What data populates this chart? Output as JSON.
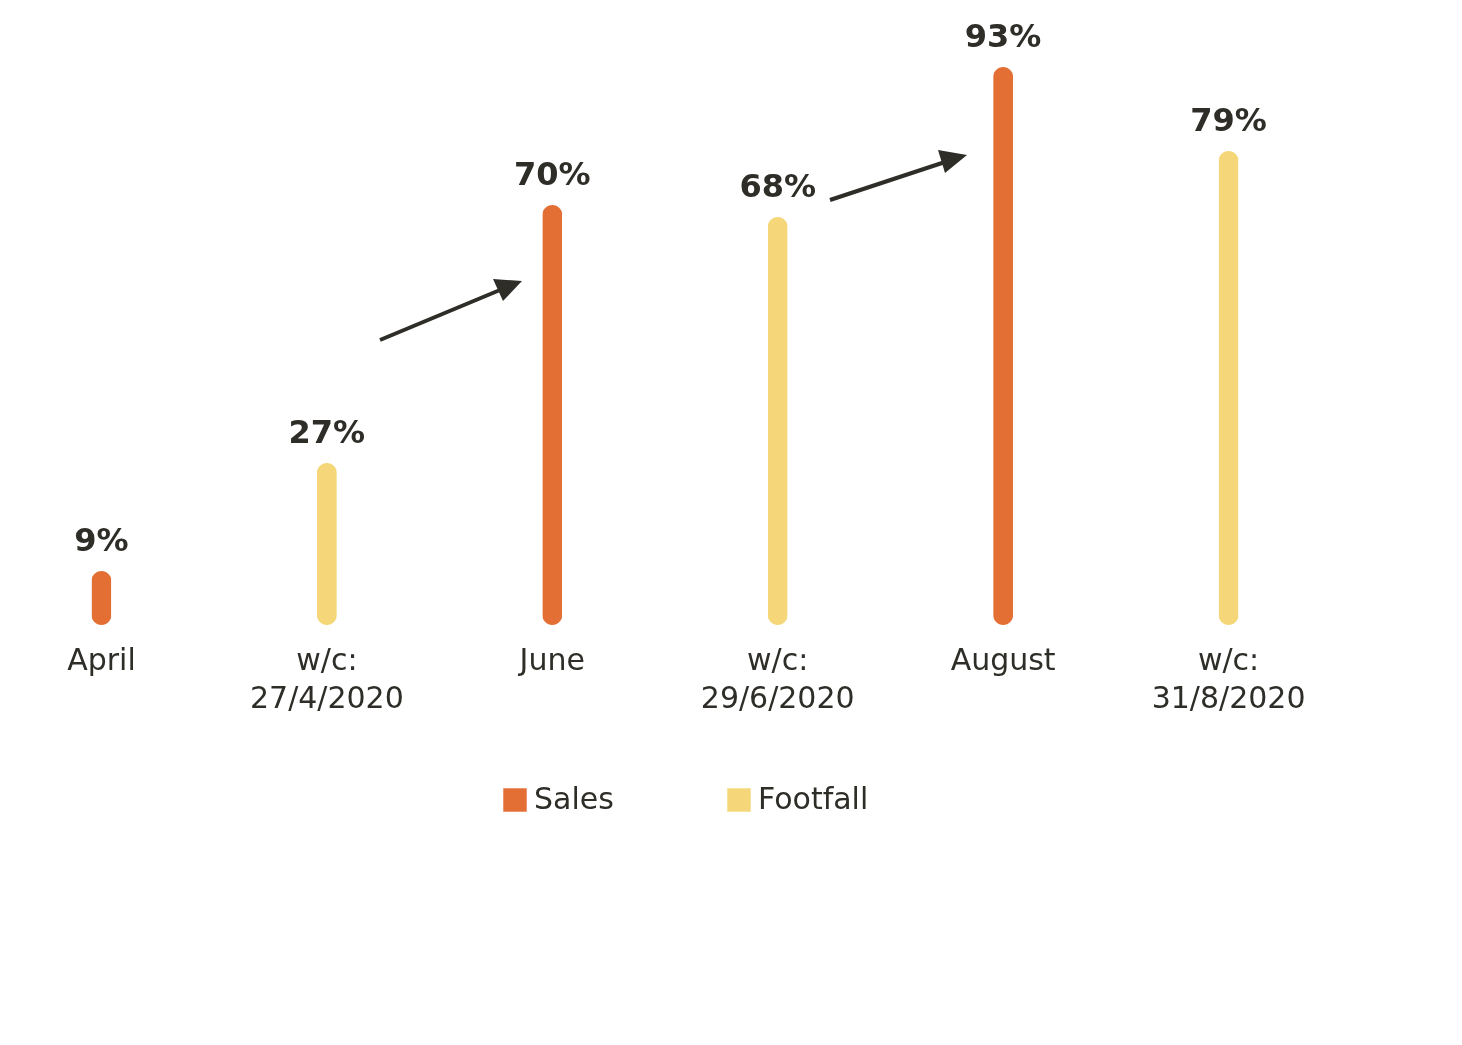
{
  "chart_data": {
    "type": "bar",
    "categories": [
      "April",
      "w/c: 27/4/2020",
      "June",
      "w/c: 29/6/2020",
      "August",
      "w/c: 31/8/2020"
    ],
    "series": [
      {
        "name": "Sales",
        "color": "#e46f35",
        "values": [
          9,
          null,
          70,
          null,
          93,
          null
        ],
        "value_labels": [
          "9%",
          null,
          "70%",
          null,
          "93%",
          null
        ]
      },
      {
        "name": "Footfall",
        "color": "#f5d77a",
        "values": [
          null,
          27,
          null,
          68,
          null,
          79
        ],
        "value_labels": [
          null,
          "27%",
          null,
          "68%",
          null,
          "79%"
        ]
      }
    ],
    "legend": "bottom",
    "grid": false
  }
}
